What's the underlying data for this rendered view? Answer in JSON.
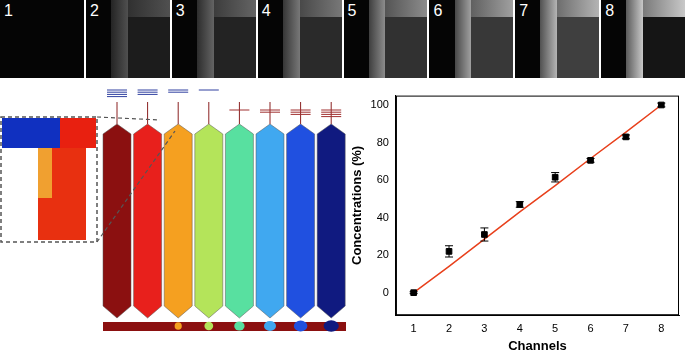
{
  "image_labels": [
    "1",
    "2",
    "3",
    "4",
    "5",
    "6",
    "7",
    "8"
  ],
  "chart_data": {
    "type": "scatter",
    "x": [
      1,
      2,
      3,
      4,
      5,
      6,
      7,
      8
    ],
    "series": [
      {
        "type": "scatter",
        "color": "#000000",
        "marker": "square",
        "values": [
          0,
          22,
          31,
          47,
          61.5,
          70.5,
          83,
          100
        ],
        "errors": [
          0.5,
          3,
          3.5,
          1.5,
          2.5,
          1,
          1,
          1
        ]
      },
      {
        "type": "line",
        "color": "#e8401c",
        "line_style": "solid",
        "values": [
          0,
          14,
          28.5,
          43,
          57,
          71.5,
          85.5,
          100
        ]
      }
    ],
    "xlabel": "Channels",
    "ylabel": "Concentrations (%)",
    "xlim": [
      0.5,
      8.5
    ],
    "ylim": [
      -12,
      105
    ],
    "xticks": [
      1,
      2,
      3,
      4,
      5,
      6,
      7,
      8
    ],
    "yticks": [
      0,
      20,
      40,
      60,
      80,
      100
    ],
    "grid": false
  }
}
